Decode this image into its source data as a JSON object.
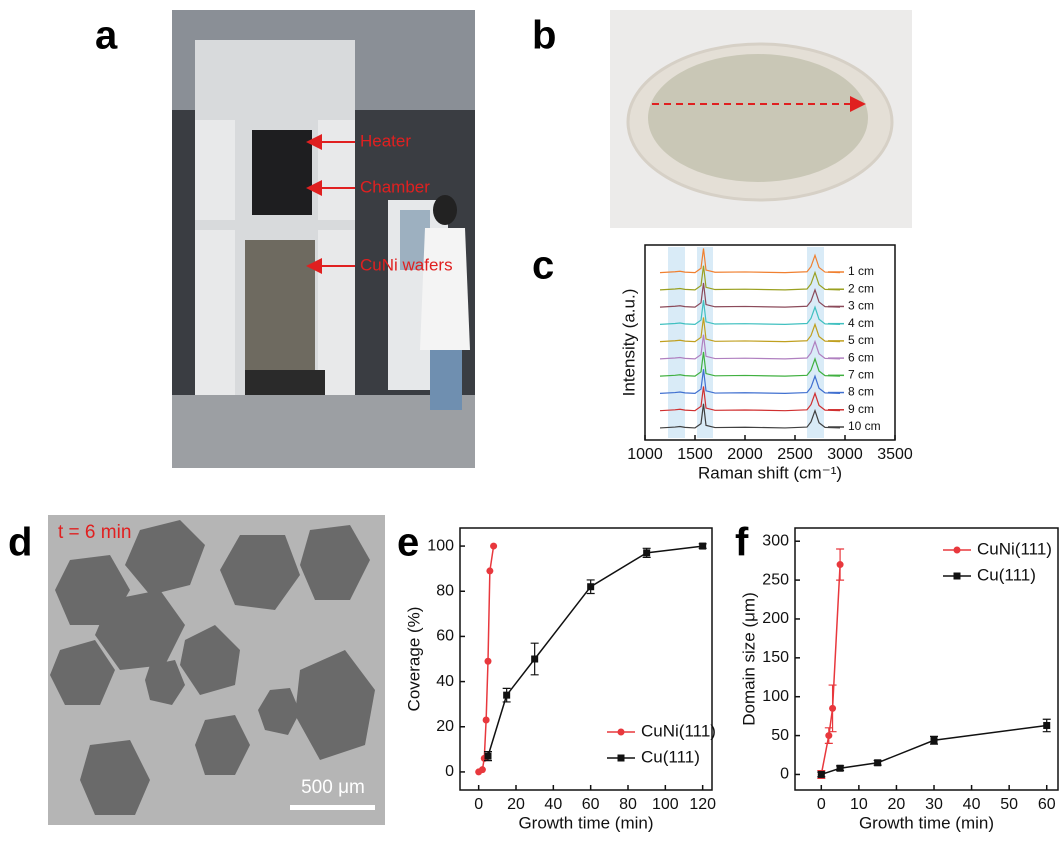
{
  "panels": {
    "a": {
      "label": "a",
      "annotations": [
        "Heater",
        "Chamber",
        "CuNi wafers"
      ]
    },
    "b": {
      "label": "b"
    },
    "c": {
      "label": "c"
    },
    "d": {
      "label": "d",
      "annotation": "t = 6 min",
      "scale_bar": "500 μm"
    },
    "e": {
      "label": "e"
    },
    "f": {
      "label": "f"
    }
  },
  "chart_data": [
    {
      "type": "line",
      "xlabel": "Raman shift (cm⁻¹)",
      "ylabel": "Intensity (a.u.)",
      "xlim": [
        1000,
        3500
      ],
      "ylim": [
        0.3,
        11.6
      ],
      "xticks": [
        1000,
        1500,
        2000,
        2500,
        3000,
        3500
      ],
      "bands": [
        [
          1230,
          1400
        ],
        [
          1520,
          1680
        ],
        [
          2620,
          2790
        ]
      ],
      "band_color": "#cfe6f5",
      "legend": "right",
      "x": [
        1150,
        1300,
        1350,
        1400,
        1500,
        1560,
        1585,
        1610,
        1700,
        2000,
        2400,
        2620,
        2660,
        2700,
        2740,
        2800,
        2950
      ],
      "series": [
        {
          "name": "1 cm",
          "color": "#f08030",
          "values": [
            10,
            10.05,
            10.08,
            10.03,
            10,
            10.25,
            11.4,
            10.15,
            10.02,
            10.04,
            10,
            10.05,
            10.35,
            11,
            10.3,
            10.03,
            10
          ]
        },
        {
          "name": "2 cm",
          "color": "#9aa020",
          "values": [
            9,
            9.05,
            9.08,
            9.03,
            9,
            9.25,
            10.4,
            9.15,
            9.02,
            9.04,
            9,
            9.05,
            9.35,
            10,
            9.3,
            9.03,
            9
          ]
        },
        {
          "name": "3 cm",
          "color": "#8b4a5a",
          "values": [
            8,
            8.05,
            8.08,
            8.03,
            8,
            8.25,
            9.4,
            8.15,
            8.02,
            8.04,
            8,
            8.05,
            8.35,
            9,
            8.3,
            8.03,
            8
          ]
        },
        {
          "name": "4 cm",
          "color": "#40c0c0",
          "values": [
            7,
            7.05,
            7.08,
            7.03,
            7,
            7.25,
            8.4,
            7.15,
            7.02,
            7.04,
            7,
            7.05,
            7.35,
            8,
            7.3,
            7.03,
            7
          ]
        },
        {
          "name": "5 cm",
          "color": "#c0a020",
          "values": [
            6,
            6.05,
            6.08,
            6.03,
            6,
            6.25,
            7.4,
            6.15,
            6.02,
            6.04,
            6,
            6.05,
            6.35,
            7,
            6.3,
            6.03,
            6
          ]
        },
        {
          "name": "6 cm",
          "color": "#b080c0",
          "values": [
            5,
            5.05,
            5.08,
            5.03,
            5,
            5.25,
            6.4,
            5.15,
            5.02,
            5.04,
            5,
            5.05,
            5.35,
            6,
            5.3,
            5.03,
            5
          ]
        },
        {
          "name": "7 cm",
          "color": "#40b040",
          "values": [
            4,
            4.05,
            4.08,
            4.03,
            4,
            4.25,
            5.4,
            4.15,
            4.02,
            4.04,
            4,
            4.05,
            4.35,
            5,
            4.3,
            4.03,
            4
          ]
        },
        {
          "name": "8 cm",
          "color": "#4070d0",
          "values": [
            3,
            3.05,
            3.08,
            3.03,
            3,
            3.25,
            4.4,
            3.15,
            3.02,
            3.04,
            3,
            3.05,
            3.35,
            4,
            3.3,
            3.03,
            3
          ]
        },
        {
          "name": "9 cm",
          "color": "#d03030",
          "values": [
            2,
            2.05,
            2.08,
            2.03,
            2,
            2.25,
            3.4,
            2.15,
            2.02,
            2.04,
            2,
            2.05,
            2.35,
            3,
            2.3,
            2.03,
            2
          ]
        },
        {
          "name": "10 cm",
          "color": "#404040",
          "values": [
            1,
            1.05,
            1.08,
            1.03,
            1,
            1.25,
            2.4,
            1.15,
            1.02,
            1.04,
            1,
            1.05,
            1.35,
            2,
            1.3,
            1.03,
            1
          ]
        }
      ]
    },
    {
      "type": "line",
      "xlabel": "Growth time (min)",
      "ylabel": "Coverage (%)",
      "xlim": [
        -10,
        125
      ],
      "ylim": [
        -8,
        108
      ],
      "xticks": [
        0,
        20,
        40,
        60,
        80,
        100,
        120
      ],
      "yticks": [
        0,
        20,
        40,
        60,
        80,
        100
      ],
      "legend": "lower right",
      "series": [
        {
          "name": "CuNi(111)",
          "color": "#e8383d",
          "marker": "circle",
          "x": [
            0,
            2,
            3,
            4,
            5,
            6,
            8
          ],
          "values": [
            0,
            1,
            6,
            23,
            49,
            89,
            100
          ]
        },
        {
          "name": "Cu(111)",
          "color": "#111111",
          "marker": "square",
          "x": [
            5,
            15,
            30,
            60,
            90,
            120
          ],
          "values": [
            7,
            34,
            50,
            82,
            97,
            100
          ],
          "errors": [
            2,
            3,
            7,
            3,
            2,
            1
          ]
        }
      ]
    },
    {
      "type": "line",
      "xlabel": "Growth time (min)",
      "ylabel": "Domain size (μm)",
      "xlim": [
        -7,
        63
      ],
      "ylim": [
        -20,
        317
      ],
      "xticks": [
        0,
        10,
        20,
        30,
        40,
        50,
        60
      ],
      "yticks": [
        0,
        50,
        100,
        150,
        200,
        250,
        300
      ],
      "legend": "upper right",
      "series": [
        {
          "name": "CuNi(111)",
          "color": "#e8383d",
          "marker": "circle",
          "x": [
            0,
            2,
            3,
            5
          ],
          "values": [
            0,
            50,
            85,
            270
          ],
          "errors": [
            5,
            10,
            30,
            20
          ]
        },
        {
          "name": "Cu(111)",
          "color": "#111111",
          "marker": "square",
          "x": [
            0,
            5,
            15,
            30,
            60
          ],
          "values": [
            0,
            8,
            15,
            44,
            63
          ],
          "errors": [
            3,
            3,
            3,
            5,
            8
          ]
        }
      ]
    }
  ]
}
